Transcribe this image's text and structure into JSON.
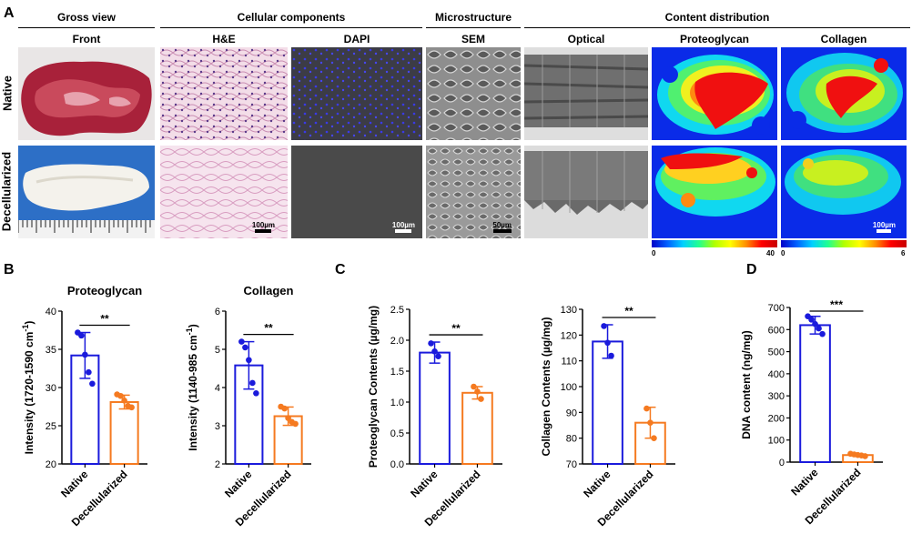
{
  "panel_labels": {
    "a": "A",
    "b": "B",
    "c": "C",
    "d": "D"
  },
  "section_headers": {
    "gross": "Gross view",
    "cellular": "Cellular components",
    "micro": "Microstructure",
    "content": "Content distribution"
  },
  "column_headers": {
    "front": "Front",
    "he": "H&E",
    "dapi": "DAPI",
    "sem": "SEM",
    "optical": "Optical",
    "proteoglycan": "Proteoglycan",
    "collagen": "Collagen"
  },
  "row_labels": {
    "native": "Native",
    "decell": "Decellularized"
  },
  "scale_bars": {
    "he": "100µm",
    "dapi": "100µm",
    "sem": "50µm",
    "collagen": "100µm"
  },
  "colorbars": {
    "pg_min": "0",
    "pg_max": "40",
    "col_min": "0",
    "col_max": "6"
  },
  "chart_data": [
    {
      "type": "bar",
      "panel": "B",
      "title": "Proteoglycan",
      "ylabel": "Intensity (1720-1590 cm",
      "ylabel_sup": "-1",
      "ylabel_end": ")",
      "categories": [
        "Native",
        "Decellularized"
      ],
      "values": [
        34.2,
        28.1
      ],
      "errors": [
        3.0,
        0.9
      ],
      "points": [
        [
          37.2,
          36.8,
          34.3,
          32.0,
          30.5
        ],
        [
          29.1,
          28.9,
          28.3,
          27.6,
          27.4
        ]
      ],
      "ylim": [
        20,
        40
      ],
      "yticks": [
        20,
        25,
        30,
        35,
        40
      ],
      "significance": "**",
      "colors": [
        "#1a1adc",
        "#f57a20"
      ]
    },
    {
      "type": "bar",
      "panel": "B",
      "title": "Collagen",
      "ylabel": "Intensity (1140-985 cm",
      "ylabel_sup": "-1",
      "ylabel_end": ")",
      "categories": [
        "Native",
        "Decellularized"
      ],
      "values": [
        4.58,
        3.25
      ],
      "errors": [
        0.62,
        0.24
      ],
      "points": [
        [
          5.2,
          5.05,
          4.72,
          4.12,
          3.85
        ],
        [
          3.5,
          3.45,
          3.2,
          3.1,
          3.05
        ]
      ],
      "ylim": [
        2,
        6
      ],
      "yticks": [
        2,
        3,
        4,
        5,
        6
      ],
      "significance": "**",
      "colors": [
        "#1a1adc",
        "#f57a20"
      ]
    },
    {
      "type": "bar",
      "panel": "C",
      "ylabel": "Proteoglycan Contents (µg/mg)",
      "categories": [
        "Native",
        "Decellularized"
      ],
      "values": [
        1.8,
        1.15
      ],
      "errors": [
        0.17,
        0.1
      ],
      "points": [
        [
          1.95,
          1.82,
          1.74
        ],
        [
          1.25,
          1.17,
          1.05
        ]
      ],
      "ylim": [
        0,
        2.5
      ],
      "yticks": [
        "0.0",
        "0.5",
        "1.0",
        "1.5",
        "2.0",
        "2.5"
      ],
      "significance": "**",
      "colors": [
        "#1a1adc",
        "#f57a20"
      ]
    },
    {
      "type": "bar",
      "panel": "C",
      "ylabel": "Collagen Contents (µg/mg)",
      "categories": [
        "Native",
        "Decellularized"
      ],
      "values": [
        117.5,
        86.0
      ],
      "errors": [
        6.5,
        6.0
      ],
      "points": [
        [
          123.5,
          117.0,
          112.0
        ],
        [
          91.5,
          86.0,
          80.0
        ]
      ],
      "ylim": [
        70,
        130
      ],
      "yticks": [
        70,
        80,
        90,
        100,
        110,
        120,
        130
      ],
      "significance": "**",
      "colors": [
        "#1a1adc",
        "#f57a20"
      ]
    },
    {
      "type": "bar",
      "panel": "D",
      "ylabel": "DNA content (ng/mg)",
      "categories": [
        "Native",
        "Decellularized"
      ],
      "values": [
        620,
        32
      ],
      "errors": [
        40,
        6
      ],
      "points": [
        [
          660,
          645,
          625,
          605,
          580
        ],
        [
          38,
          35,
          32,
          30,
          27
        ]
      ],
      "ylim": [
        0,
        700
      ],
      "yticks": [
        0,
        100,
        200,
        300,
        400,
        500,
        600,
        700
      ],
      "significance": "***",
      "colors": [
        "#1a1adc",
        "#f57a20"
      ]
    }
  ]
}
